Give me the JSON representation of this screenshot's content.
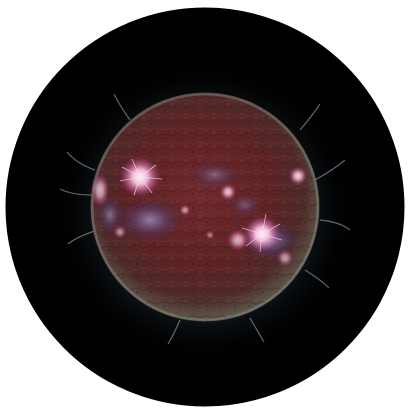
{
  "image": {
    "subject": "sun-icon",
    "colors": {
      "background": "#ffffff",
      "space": "#000000",
      "corona_inner": "#d9e6ff",
      "corona_outer": "#4c6e8a",
      "disk_core": "#5a1f22",
      "disk_mid": "#6b2a2c",
      "disk_limb": "#4a3a35",
      "active_region": "#ff9ec8",
      "active_region_glow": "#ffffff",
      "filament": "#3a2f6a"
    }
  }
}
